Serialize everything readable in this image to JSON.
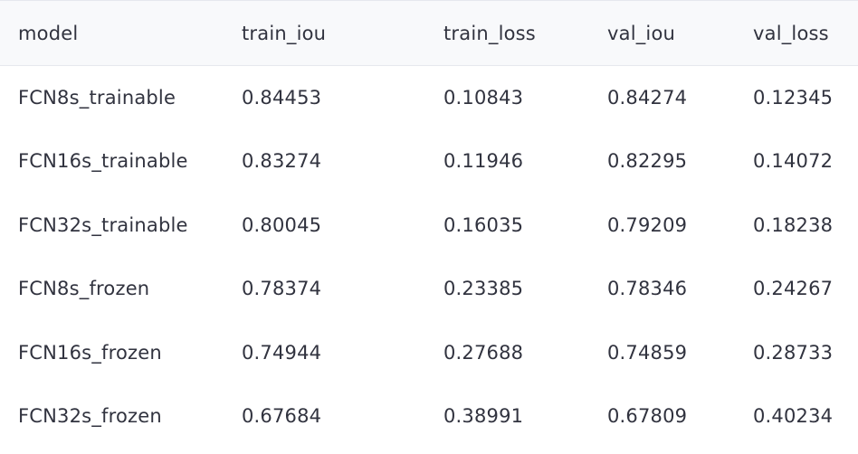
{
  "table": {
    "columns": [
      "model",
      "train_iou",
      "train_loss",
      "val_iou",
      "val_loss"
    ],
    "rows": [
      [
        "FCN8s_trainable",
        "0.84453",
        "0.10843",
        "0.84274",
        "0.12345"
      ],
      [
        "FCN16s_trainable",
        "0.83274",
        "0.11946",
        "0.82295",
        "0.14072"
      ],
      [
        "FCN32s_trainable",
        "0.80045",
        "0.16035",
        "0.79209",
        "0.18238"
      ],
      [
        "FCN8s_frozen",
        "0.78374",
        "0.23385",
        "0.78346",
        "0.24267"
      ],
      [
        "FCN16s_frozen",
        "0.74944",
        "0.27688",
        "0.74859",
        "0.28733"
      ],
      [
        "FCN32s_frozen",
        "0.67684",
        "0.38991",
        "0.67809",
        "0.40234"
      ]
    ]
  }
}
